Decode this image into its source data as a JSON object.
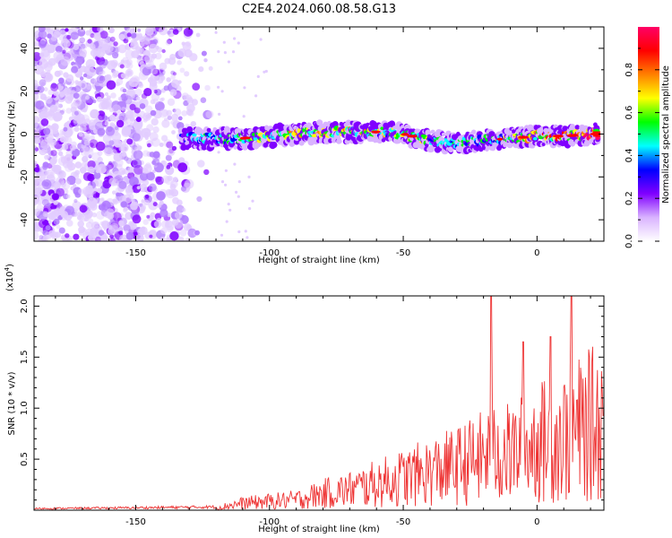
{
  "figure": {
    "title": "C2E4.2024.060.08.58.G13"
  },
  "chart_data": [
    {
      "type": "heatmap",
      "title": "C2E4.2024.060.08.58.G13",
      "xlabel": "Height of straight line (km)",
      "ylabel": "Frequency (Hz)",
      "xlim": [
        -188,
        25
      ],
      "ylim": [
        -50,
        50
      ],
      "x_ticks": [
        -150,
        -100,
        -50,
        0
      ],
      "y_ticks": [
        -40,
        -20,
        0,
        20,
        40
      ],
      "noise_region_x": [
        -188,
        -120
      ],
      "signal_band_center_hz": 0,
      "colorbar": {
        "label": "Normalized spectral amplitude",
        "range": [
          0.0,
          1.0
        ],
        "ticks": [
          0.0,
          0.2,
          0.4,
          0.6,
          0.8
        ],
        "tick_labels": [
          "0.0",
          "0.2",
          "0.4",
          "0.6",
          "0.8"
        ],
        "colormap": [
          "#ffffff",
          "#d9b3ff",
          "#8000ff",
          "#0000ff",
          "#00ffff",
          "#00ff00",
          "#ffff00",
          "#ff8000",
          "#ff0000",
          "#ff0066"
        ]
      },
      "band_segments": [
        {
          "x": -133,
          "y": -2,
          "level": 0.35
        },
        {
          "x": -122,
          "y": -2,
          "level": 0.5
        },
        {
          "x": -110,
          "y": -2,
          "level": 0.55
        },
        {
          "x": -100,
          "y": -1,
          "level": 0.6
        },
        {
          "x": -90,
          "y": 0,
          "level": 0.7
        },
        {
          "x": -80,
          "y": 1,
          "level": 0.75
        },
        {
          "x": -70,
          "y": 1,
          "level": 0.7
        },
        {
          "x": -60,
          "y": 1,
          "level": 0.65
        },
        {
          "x": -50,
          "y": 0,
          "level": 0.6
        },
        {
          "x": -40,
          "y": -3,
          "level": 0.55
        },
        {
          "x": -30,
          "y": -4,
          "level": 0.5
        },
        {
          "x": -20,
          "y": -3,
          "level": 0.5
        },
        {
          "x": -10,
          "y": -2,
          "level": 0.6
        },
        {
          "x": 0,
          "y": -1,
          "level": 0.75
        },
        {
          "x": 10,
          "y": -1,
          "level": 0.8
        },
        {
          "x": 20,
          "y": 0,
          "level": 0.9
        }
      ]
    },
    {
      "type": "line",
      "xlabel": "Height of straight line (km)",
      "ylabel": "SNR (10 * v/v)",
      "y_multiplier": "(x10^4)",
      "xlim": [
        -188,
        25
      ],
      "ylim": [
        0,
        2.1
      ],
      "x_ticks": [
        -150,
        -100,
        -50,
        0
      ],
      "y_ticks": [
        0.5,
        1.0,
        1.5,
        2.0
      ],
      "y_tick_labels": [
        "0.5",
        "1.0",
        "1.5",
        "2.0"
      ],
      "line_color": "#ee3333",
      "envelope": [
        {
          "x": -188,
          "y": 0.02
        },
        {
          "x": -150,
          "y": 0.03
        },
        {
          "x": -120,
          "y": 0.04
        },
        {
          "x": -110,
          "y": 0.12
        },
        {
          "x": -100,
          "y": 0.15
        },
        {
          "x": -90,
          "y": 0.18
        },
        {
          "x": -80,
          "y": 0.28
        },
        {
          "x": -70,
          "y": 0.35
        },
        {
          "x": -60,
          "y": 0.45
        },
        {
          "x": -50,
          "y": 0.55
        },
        {
          "x": -40,
          "y": 0.65
        },
        {
          "x": -30,
          "y": 0.75
        },
        {
          "x": -20,
          "y": 0.9
        },
        {
          "x": -15,
          "y": 1.0
        },
        {
          "x": -10,
          "y": 0.95
        },
        {
          "x": 0,
          "y": 1.15
        },
        {
          "x": 10,
          "y": 1.25
        },
        {
          "x": 20,
          "y": 1.45
        },
        {
          "x": 25,
          "y": 1.55
        }
      ],
      "spikes": [
        {
          "x": -17,
          "y": 2.1
        },
        {
          "x": 13,
          "y": 2.1
        },
        {
          "x": -5,
          "y": 1.65
        },
        {
          "x": 5,
          "y": 1.7
        }
      ]
    }
  ]
}
